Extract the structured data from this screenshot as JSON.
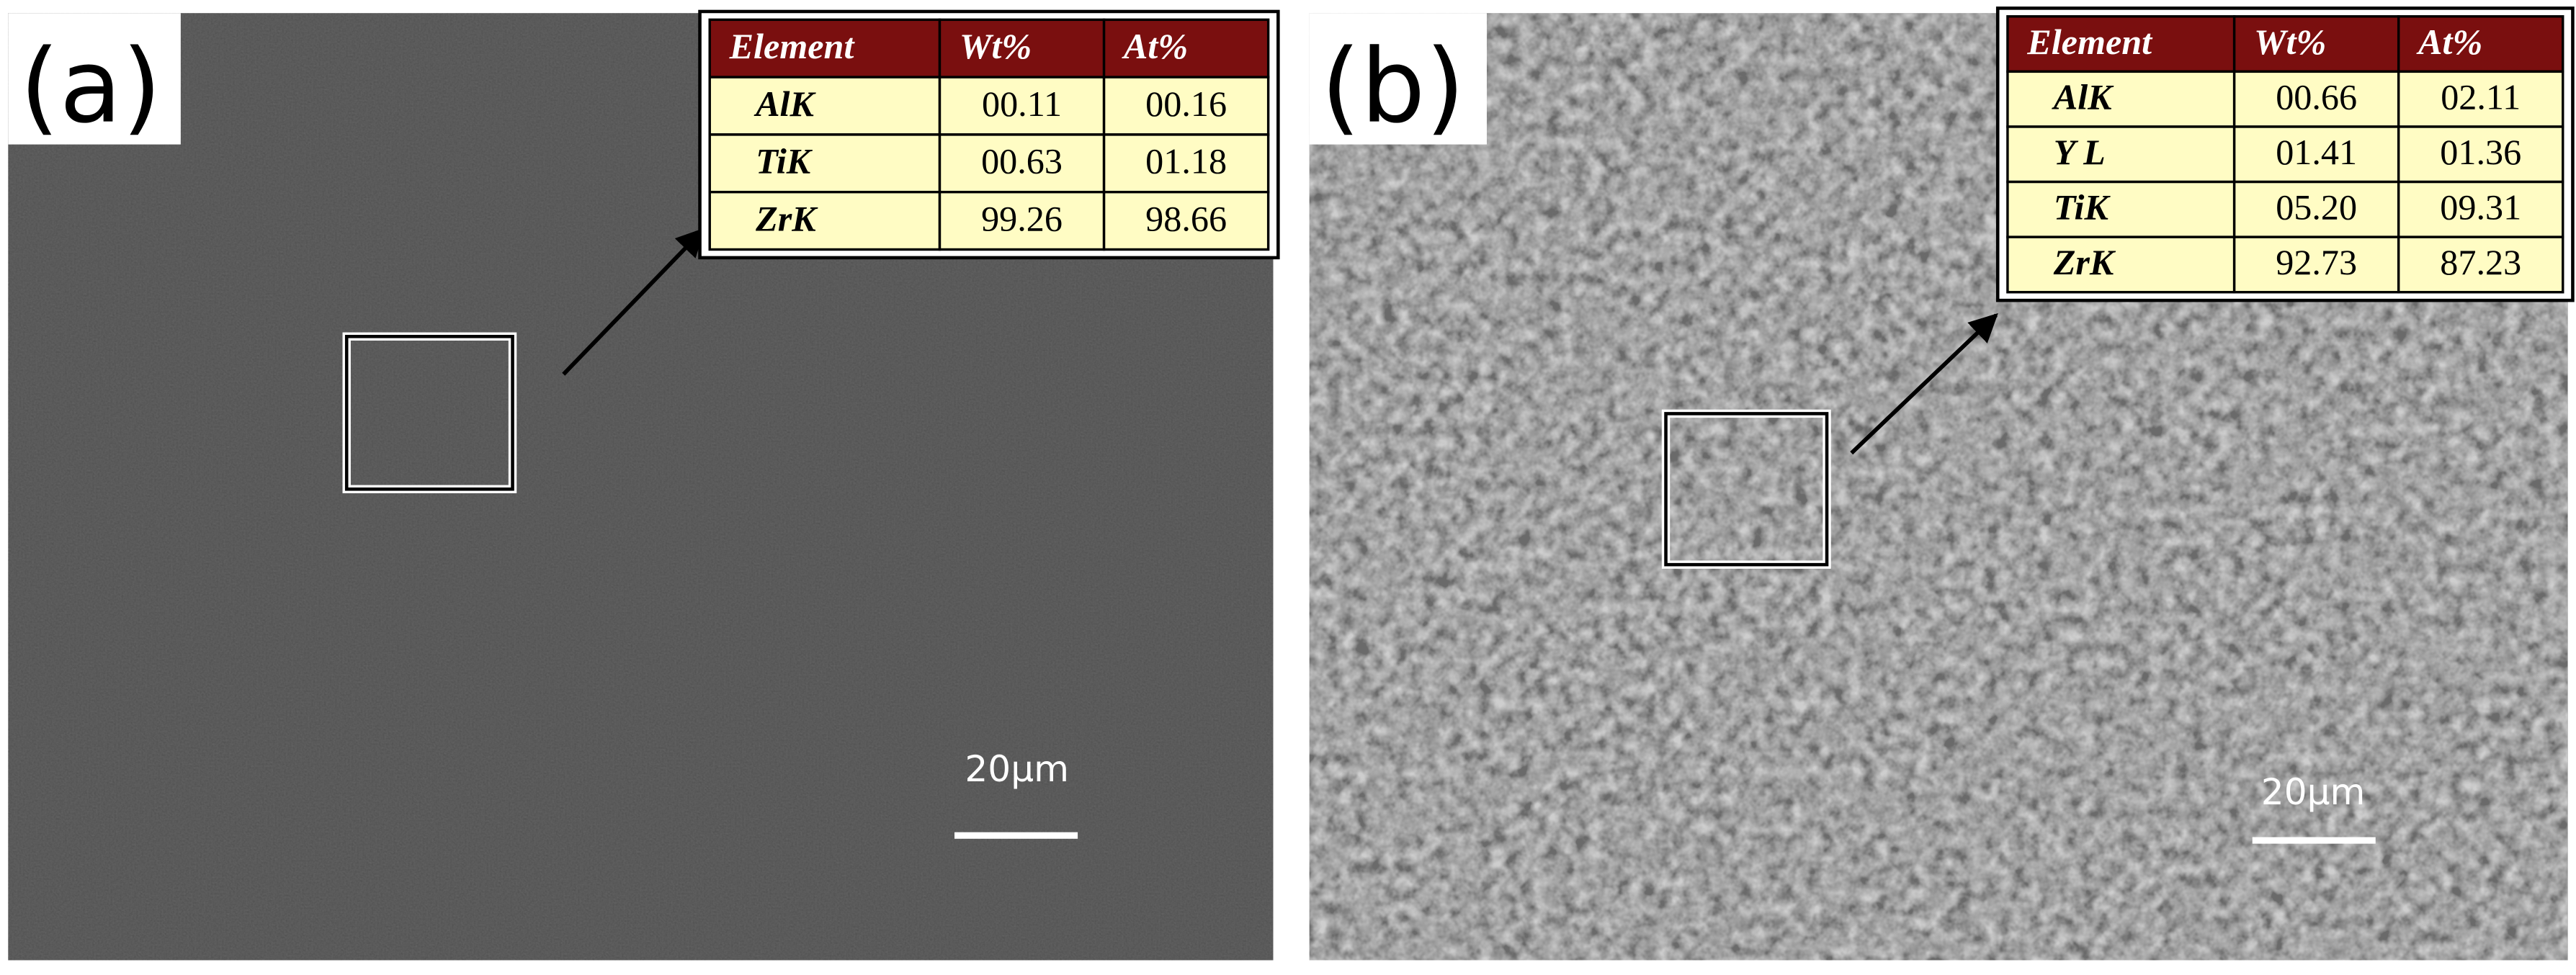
{
  "panels": [
    {
      "label": "(a)",
      "scale_bar": "20μm",
      "table": {
        "header": [
          "Element",
          "Wt%",
          "At%"
        ],
        "rows": [
          [
            "AlK",
            "00.11",
            "00.16"
          ],
          [
            "TiK",
            "00.63",
            "01.18"
          ],
          [
            "ZrK",
            "99.26",
            "98.66"
          ]
        ]
      }
    },
    {
      "label": "(b)",
      "scale_bar": "20μm",
      "table": {
        "header": [
          "Element",
          "Wt%",
          "At%"
        ],
        "rows": [
          [
            "AlK",
            "00.66",
            "02.11"
          ],
          [
            "Y L",
            "01.41",
            "01.36"
          ],
          [
            "TiK",
            "05.20",
            "09.31"
          ],
          [
            "ZrK",
            "92.73",
            "87.23"
          ]
        ]
      }
    }
  ]
}
